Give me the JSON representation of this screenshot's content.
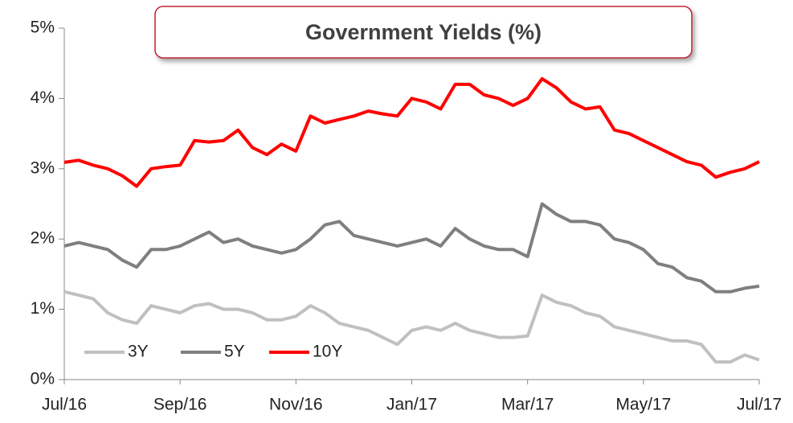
{
  "chart_data": {
    "type": "line",
    "title": "Government Yields (%)",
    "categories": [
      "Jul/16",
      null,
      null,
      null,
      null,
      null,
      null,
      null,
      "Sep/16",
      null,
      null,
      null,
      null,
      null,
      null,
      null,
      "Nov/16",
      null,
      null,
      null,
      null,
      null,
      null,
      null,
      "Jan/17",
      null,
      null,
      null,
      null,
      null,
      null,
      null,
      "Mar/17",
      null,
      null,
      null,
      null,
      null,
      null,
      null,
      "May/17",
      null,
      null,
      null,
      null,
      null,
      null,
      null,
      "Jul/17"
    ],
    "series": [
      {
        "name": "3Y",
        "color": "#c0c0c0",
        "values": [
          1.25,
          1.2,
          1.15,
          0.95,
          0.85,
          0.8,
          1.05,
          1.0,
          0.95,
          1.05,
          1.08,
          1.0,
          1.0,
          0.95,
          0.85,
          0.85,
          0.9,
          1.05,
          0.95,
          0.8,
          0.75,
          0.7,
          0.6,
          0.5,
          0.7,
          0.75,
          0.7,
          0.8,
          0.7,
          0.65,
          0.6,
          0.6,
          0.62,
          1.2,
          1.1,
          1.05,
          0.95,
          0.9,
          0.75,
          0.7,
          0.65,
          0.6,
          0.55,
          0.55,
          0.5,
          0.25,
          0.25,
          0.35,
          0.28
        ]
      },
      {
        "name": "5Y",
        "color": "#7f7f7f",
        "values": [
          1.9,
          1.95,
          1.9,
          1.85,
          1.7,
          1.6,
          1.85,
          1.85,
          1.9,
          2.0,
          2.1,
          1.95,
          2.0,
          1.9,
          1.85,
          1.8,
          1.85,
          2.0,
          2.2,
          2.25,
          2.05,
          2.0,
          1.95,
          1.9,
          1.95,
          2.0,
          1.9,
          2.15,
          2.0,
          1.9,
          1.85,
          1.85,
          1.75,
          2.5,
          2.35,
          2.25,
          2.25,
          2.2,
          2.0,
          1.95,
          1.85,
          1.65,
          1.6,
          1.45,
          1.4,
          1.25,
          1.25,
          1.3,
          1.33
        ]
      },
      {
        "name": "10Y",
        "color": "#ff0000",
        "values": [
          3.09,
          3.12,
          3.05,
          3.0,
          2.9,
          2.75,
          3.0,
          3.03,
          3.05,
          3.4,
          3.38,
          3.4,
          3.55,
          3.3,
          3.2,
          3.35,
          3.25,
          3.75,
          3.65,
          3.7,
          3.75,
          3.82,
          3.78,
          3.75,
          4.0,
          3.95,
          3.85,
          4.2,
          4.2,
          4.05,
          4.0,
          3.9,
          4.0,
          4.28,
          4.15,
          3.95,
          3.85,
          3.88,
          3.55,
          3.5,
          3.4,
          3.3,
          3.2,
          3.1,
          3.05,
          2.88,
          2.95,
          3.0,
          3.1
        ]
      }
    ],
    "ylim": [
      0,
      5
    ],
    "yticks": [
      {
        "value": 0,
        "label": "0%"
      },
      {
        "value": 1,
        "label": "1%"
      },
      {
        "value": 2,
        "label": "2%"
      },
      {
        "value": 3,
        "label": "3%"
      },
      {
        "value": 4,
        "label": "4%"
      },
      {
        "value": 5,
        "label": "5%"
      }
    ],
    "grid": false,
    "legend": "lower left"
  }
}
